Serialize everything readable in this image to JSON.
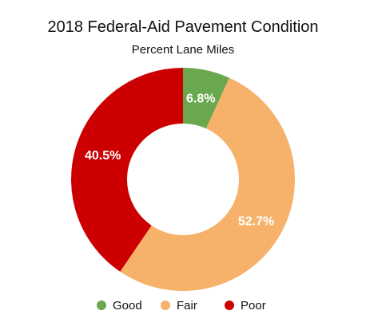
{
  "chart_data": {
    "type": "pie",
    "title": "2018 Federal-Aid Pavement Condition",
    "subtitle": "Percent Lane Miles",
    "donut": true,
    "legend_position": "bottom",
    "series": [
      {
        "name": "Good",
        "value": 6.8,
        "label": "6.8%",
        "color": "#6aa84f"
      },
      {
        "name": "Fair",
        "value": 52.7,
        "label": "52.7%",
        "color": "#f6b26b"
      },
      {
        "name": "Poor",
        "value": 40.5,
        "label": "40.5%",
        "color": "#cc0000"
      }
    ]
  }
}
